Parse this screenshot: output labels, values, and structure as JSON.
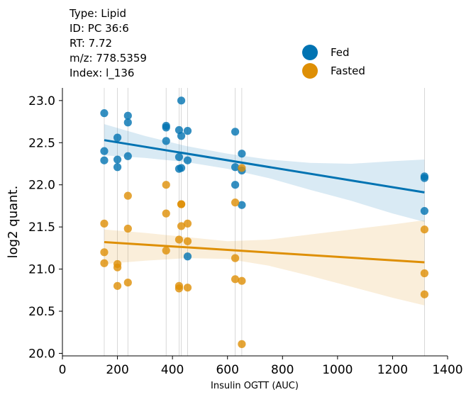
{
  "header": {
    "lines": [
      "Type: Lipid",
      "ID: PC 36:6",
      "RT: 7.72",
      "m/z: 778.5359",
      "Index: l_136"
    ]
  },
  "chart_data": {
    "type": "scatter",
    "title": "",
    "xlabel": "Insulin OGTT (AUC)",
    "ylabel": "log2 quant.",
    "xlim": [
      0,
      1400
    ],
    "ylim": [
      19.97,
      23.15
    ],
    "xticks": [
      0,
      200,
      400,
      600,
      800,
      1000,
      1200,
      1400
    ],
    "yticks": [
      20.0,
      20.5,
      21.0,
      21.5,
      22.0,
      22.5,
      23.0
    ],
    "legend_position": "top-right",
    "vertical_guides_x": [
      152,
      200,
      238,
      377,
      424,
      432,
      455,
      628,
      652,
      1316
    ],
    "series": [
      {
        "name": "Fed",
        "color": "#0173b2",
        "points": [
          [
            152,
            22.85
          ],
          [
            152,
            22.4
          ],
          [
            152,
            22.29
          ],
          [
            200,
            22.56
          ],
          [
            200,
            22.3
          ],
          [
            200,
            22.21
          ],
          [
            238,
            22.82
          ],
          [
            238,
            22.74
          ],
          [
            238,
            22.34
          ],
          [
            377,
            22.7
          ],
          [
            377,
            22.68
          ],
          [
            377,
            22.52
          ],
          [
            424,
            22.65
          ],
          [
            424,
            22.33
          ],
          [
            424,
            22.19
          ],
          [
            432,
            23.0
          ],
          [
            432,
            22.58
          ],
          [
            432,
            22.2
          ],
          [
            455,
            22.64
          ],
          [
            455,
            22.29
          ],
          [
            455,
            21.15
          ],
          [
            628,
            22.63
          ],
          [
            628,
            22.21
          ],
          [
            628,
            22.0
          ],
          [
            652,
            22.37
          ],
          [
            652,
            22.17
          ],
          [
            652,
            21.76
          ],
          [
            1316,
            22.1
          ],
          [
            1316,
            22.08
          ],
          [
            1316,
            21.69
          ]
        ],
        "regression": {
          "x": [
            152,
            1316
          ],
          "y": [
            22.53,
            21.91
          ]
        },
        "ci_band": {
          "x": [
            152,
            300,
            450,
            600,
            750,
            900,
            1050,
            1200,
            1316
          ],
          "upper": [
            22.72,
            22.58,
            22.46,
            22.37,
            22.3,
            22.26,
            22.25,
            22.28,
            22.3
          ],
          "lower": [
            22.35,
            22.32,
            22.27,
            22.19,
            22.08,
            21.94,
            21.81,
            21.66,
            21.56
          ]
        }
      },
      {
        "name": "Fasted",
        "color": "#de8f05",
        "points": [
          [
            152,
            21.54
          ],
          [
            152,
            21.2
          ],
          [
            152,
            21.07
          ],
          [
            200,
            21.06
          ],
          [
            200,
            21.02
          ],
          [
            200,
            20.8
          ],
          [
            238,
            21.87
          ],
          [
            238,
            21.48
          ],
          [
            238,
            20.84
          ],
          [
            377,
            22.0
          ],
          [
            377,
            21.66
          ],
          [
            377,
            21.22
          ],
          [
            424,
            21.35
          ],
          [
            424,
            20.8
          ],
          [
            424,
            20.77
          ],
          [
            432,
            21.77
          ],
          [
            432,
            21.77
          ],
          [
            432,
            21.51
          ],
          [
            455,
            21.54
          ],
          [
            455,
            21.33
          ],
          [
            455,
            20.78
          ],
          [
            628,
            21.79
          ],
          [
            628,
            21.13
          ],
          [
            628,
            20.88
          ],
          [
            652,
            22.2
          ],
          [
            652,
            20.86
          ],
          [
            652,
            20.11
          ],
          [
            1316,
            21.47
          ],
          [
            1316,
            20.95
          ],
          [
            1316,
            20.7
          ]
        ],
        "regression": {
          "x": [
            152,
            1316
          ],
          "y": [
            21.32,
            21.08
          ]
        },
        "ci_band": {
          "x": [
            152,
            300,
            450,
            600,
            750,
            900,
            1050,
            1200,
            1316
          ],
          "upper": [
            21.47,
            21.43,
            21.38,
            21.33,
            21.35,
            21.41,
            21.47,
            21.53,
            21.58
          ],
          "lower": [
            21.06,
            21.1,
            21.13,
            21.12,
            21.04,
            20.92,
            20.79,
            20.66,
            20.57
          ]
        }
      }
    ]
  }
}
